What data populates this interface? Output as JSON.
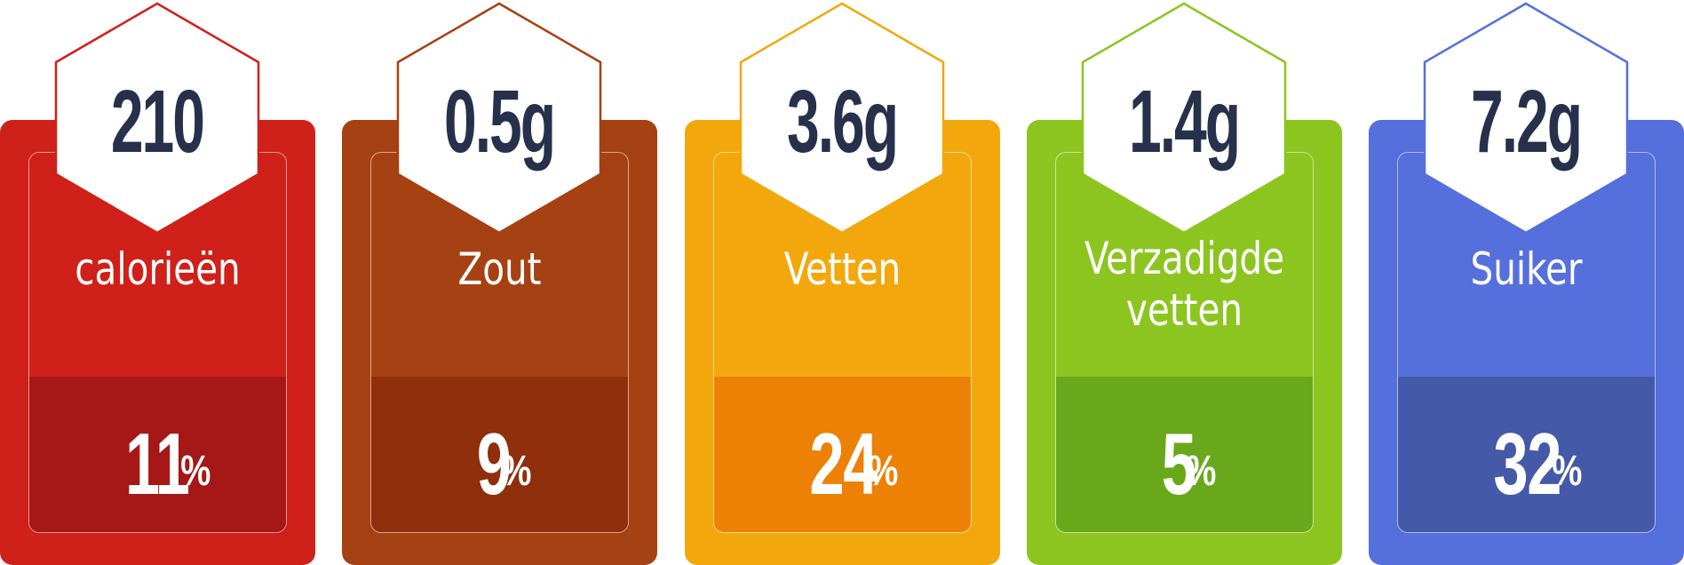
{
  "items": [
    {
      "value": "210",
      "label": "calorieën",
      "label2": "",
      "percent_value": "11",
      "percent_symbol": "%",
      "colors": {
        "card": "#cf2019",
        "bottom": "#a51817",
        "stroke": "#cf2019"
      }
    },
    {
      "value": "0.5g",
      "label": "Zout",
      "label2": "",
      "percent_value": "9",
      "percent_symbol": "%",
      "colors": {
        "card": "#a64113",
        "bottom": "#8f2f0b",
        "stroke": "#a64113"
      }
    },
    {
      "value": "3.6g",
      "label": "Vetten",
      "label2": "",
      "percent_value": "24",
      "percent_symbol": "%",
      "colors": {
        "card": "#f2a80d",
        "bottom": "#ec8105",
        "stroke": "#f2a80d"
      }
    },
    {
      "value": "1.4g",
      "label": "Verzadigde",
      "label2": "vetten",
      "percent_value": "5",
      "percent_symbol": "%",
      "colors": {
        "card": "#8cc520",
        "bottom": "#69a81b",
        "stroke": "#8cc520"
      }
    },
    {
      "value": "7.2g",
      "label": "Suiker",
      "label2": "",
      "percent_value": "32",
      "percent_symbol": "%",
      "colors": {
        "card": "#556fdc",
        "bottom": "#4459a7",
        "stroke": "#556fdc"
      }
    }
  ]
}
